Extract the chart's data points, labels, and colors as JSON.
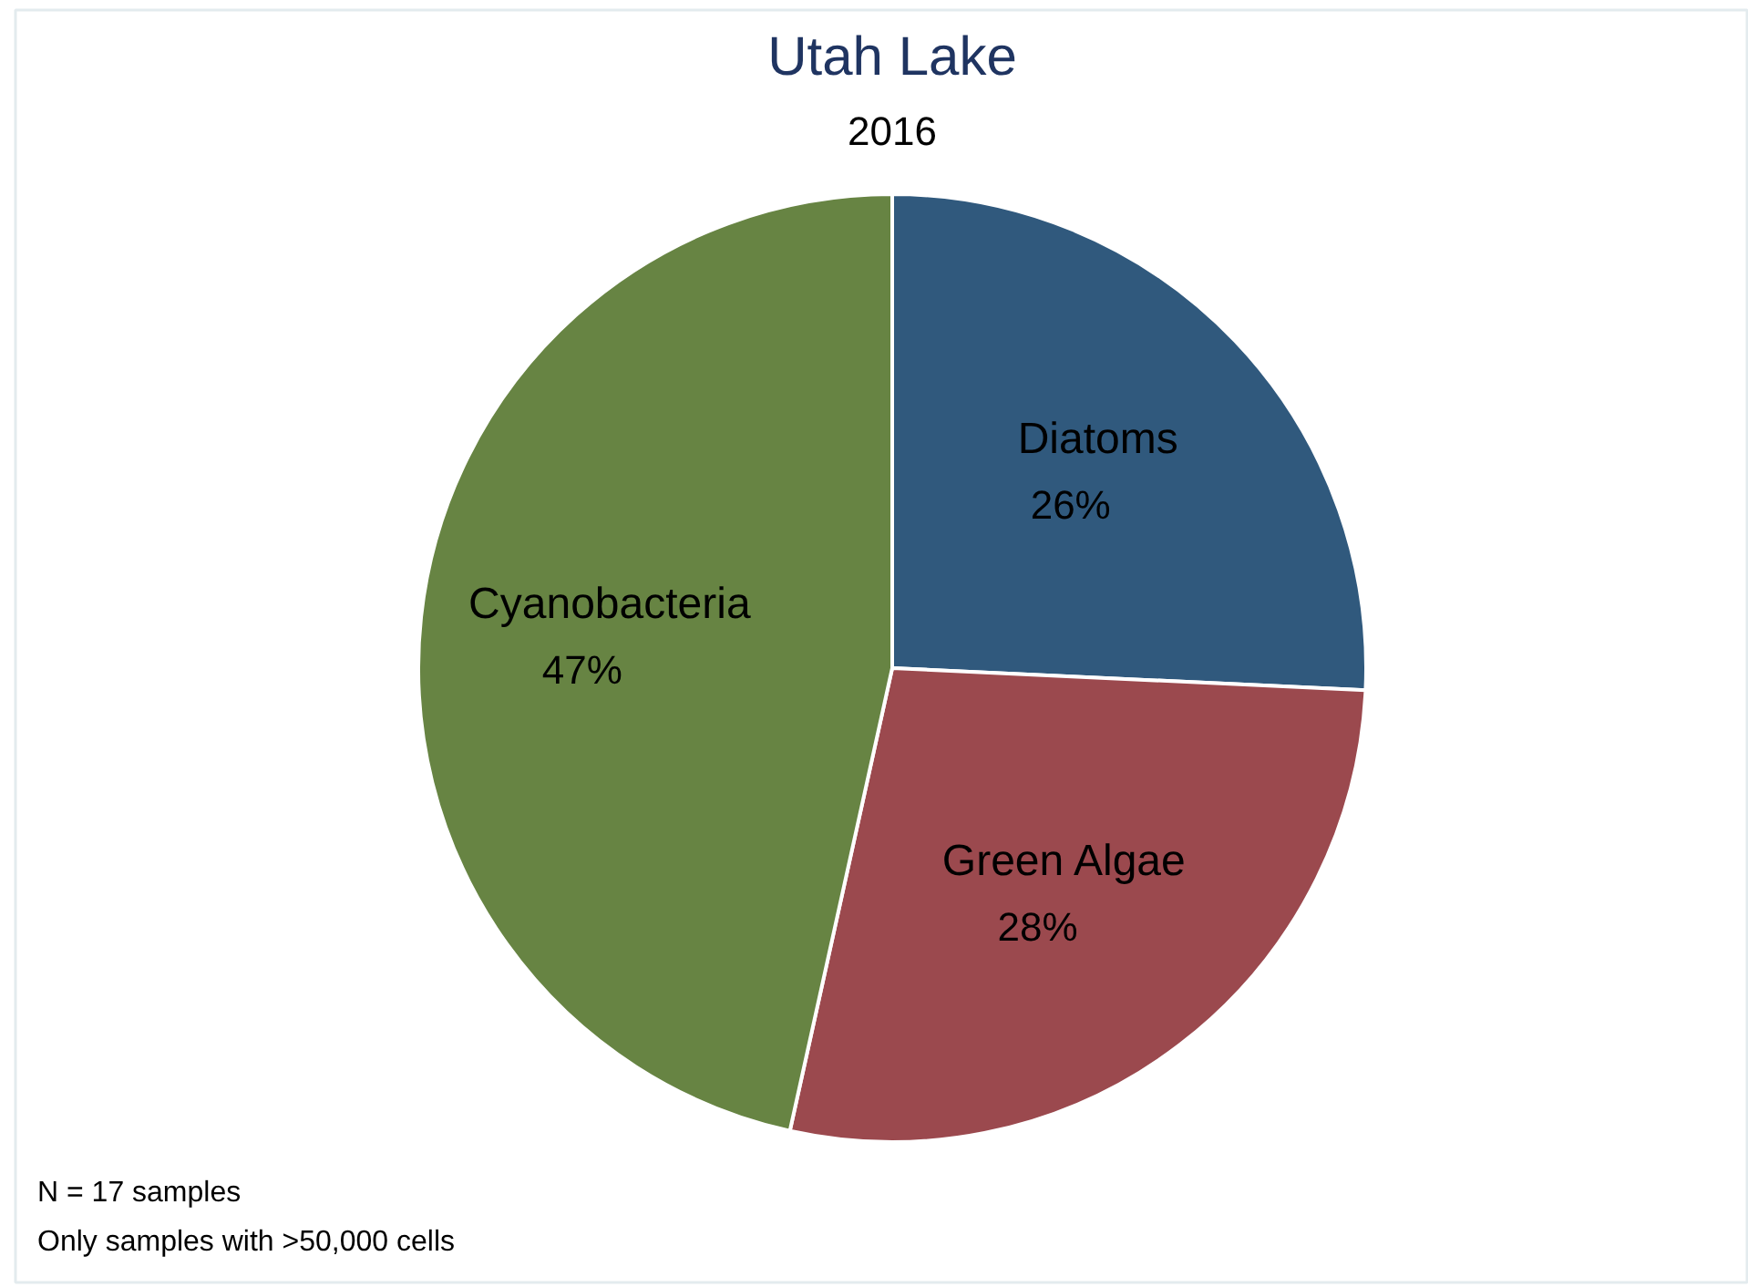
{
  "chart_data": {
    "type": "pie",
    "title": "Utah Lake",
    "subtitle": "2016",
    "categories": [
      "Diatoms",
      "Green Algae",
      "Cyanobacteria"
    ],
    "values": [
      26,
      28,
      47
    ],
    "value_labels": [
      "26%",
      "28%",
      "47%"
    ],
    "colors": [
      "#30597d",
      "#9b494e",
      "#678443"
    ],
    "annotations": [
      "N = 17 samples",
      "Only samples with >50,000 cells"
    ]
  }
}
